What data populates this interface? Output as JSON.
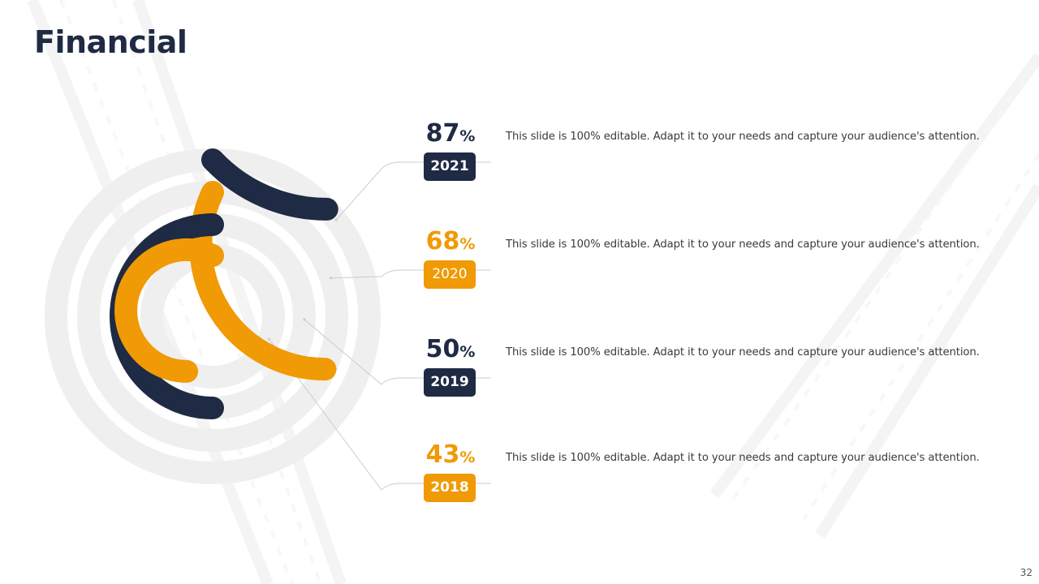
{
  "title": "Financial",
  "page_number": "32",
  "colors": {
    "navy": "#1f2a44",
    "orange": "#f09a05",
    "track": "#efefef",
    "connector": "#cccccc"
  },
  "chart_data": {
    "type": "radial-bar",
    "title": "",
    "max": 100,
    "series": [
      {
        "year": "2021",
        "value": 87,
        "label": "87",
        "unit": "%",
        "color": "#1f2a44",
        "badge_color": "#1f2a44",
        "pct_color": "#1f2a44",
        "description": "This slide is 100% editable. Adapt it to your needs and capture your audience's attention."
      },
      {
        "year": "2020",
        "value": 68,
        "label": "68",
        "unit": "%",
        "color": "#f09a05",
        "badge_color": "#f09a05",
        "pct_color": "#f09a05",
        "description": "This slide is 100% editable. Adapt it to your needs and capture your audience's attention."
      },
      {
        "year": "2019",
        "value": 50,
        "label": "50",
        "unit": "%",
        "color": "#1f2a44",
        "badge_color": "#1f2a44",
        "pct_color": "#1f2a44",
        "description": "This slide is 100% editable. Adapt it to your needs and capture your audience's attention."
      },
      {
        "year": "2018",
        "value": 43,
        "label": "43",
        "unit": "%",
        "color": "#f09a05",
        "badge_color": "#f09a05",
        "pct_color": "#f09a05",
        "description": "This slide is 100% editable. Adapt it to your needs and capture your audience's attention."
      }
    ]
  }
}
